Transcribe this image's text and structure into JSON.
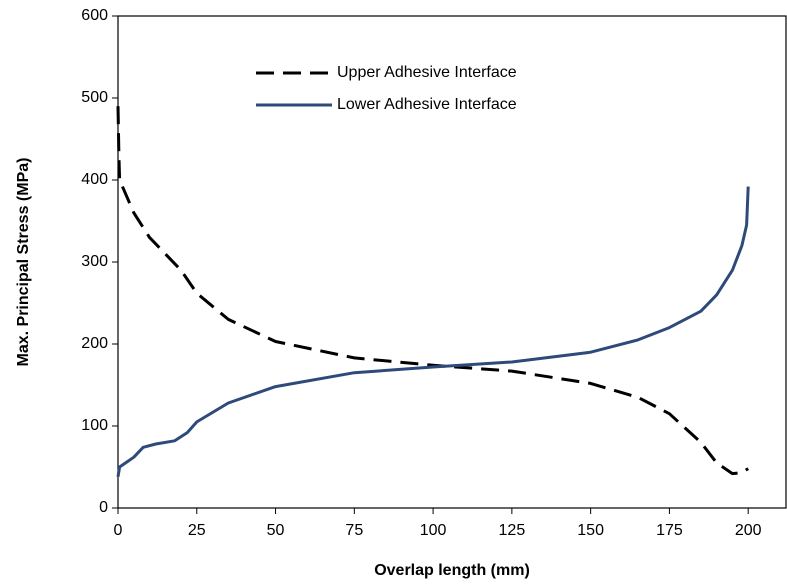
{
  "chart_data": {
    "type": "line",
    "xlabel": "Overlap length (mm)",
    "ylabel": "Max. Principal Stress (MPa)",
    "xlim": [
      0,
      212
    ],
    "xticks": [
      0,
      25,
      50,
      75,
      100,
      125,
      150,
      175,
      200
    ],
    "ylim": [
      0,
      600
    ],
    "yticks": [
      0,
      100,
      200,
      300,
      400,
      500,
      600
    ],
    "series": [
      {
        "name": "Upper Adhesive Interface",
        "color": "#000000",
        "dashed": true,
        "x": [
          0,
          0.3,
          0.5,
          5,
          10,
          20,
          25,
          35,
          50,
          75,
          100,
          125,
          150,
          165,
          175,
          185,
          190,
          195,
          198,
          200
        ],
        "values": [
          490,
          430,
          400,
          360,
          330,
          290,
          262,
          230,
          203,
          183,
          174,
          167,
          152,
          135,
          115,
          80,
          55,
          42,
          43,
          48
        ]
      },
      {
        "name": "Lower Adhesive Interface",
        "color": "#2e4a7a",
        "dashed": false,
        "x": [
          0,
          0.5,
          5,
          8,
          12,
          18,
          22,
          25,
          35,
          50,
          75,
          100,
          125,
          150,
          165,
          175,
          185,
          190,
          195,
          198,
          199.5,
          200
        ],
        "values": [
          38,
          50,
          62,
          74,
          78,
          82,
          92,
          105,
          128,
          148,
          165,
          172,
          178,
          190,
          205,
          220,
          240,
          260,
          290,
          320,
          345,
          392
        ]
      }
    ]
  }
}
